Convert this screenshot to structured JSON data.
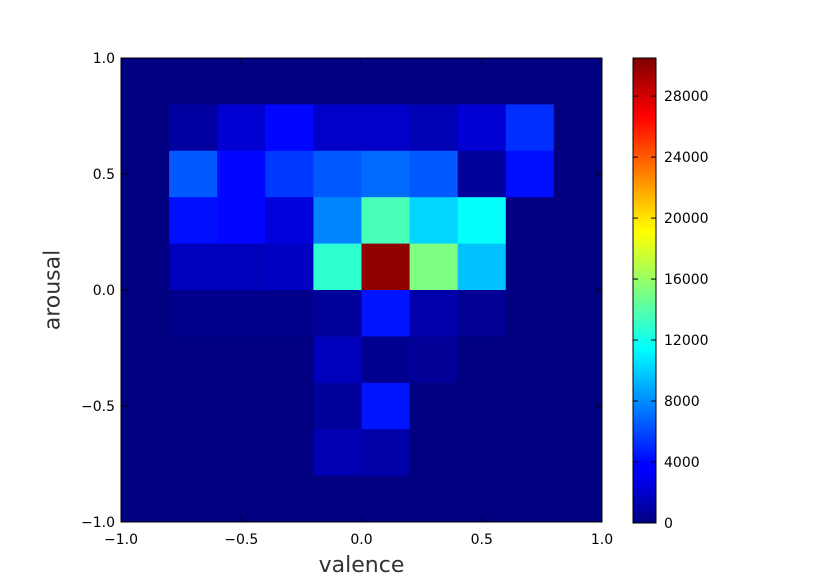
{
  "chart_data": {
    "type": "heatmap",
    "xlabel": "valence",
    "ylabel": "arousal",
    "xlim": [
      -1.0,
      1.0
    ],
    "ylim": [
      -1.0,
      1.0
    ],
    "x_ticks": [
      "−1.0",
      "−0.5",
      "0.0",
      "0.5",
      "1.0"
    ],
    "x_tick_values": [
      -1.0,
      -0.5,
      0.0,
      0.5,
      1.0
    ],
    "y_ticks": [
      "−1.0",
      "−0.5",
      "0.0",
      "0.5",
      "1.0"
    ],
    "y_tick_values": [
      -1.0,
      -0.5,
      0.0,
      0.5,
      1.0
    ],
    "x_bin_edges": [
      -1.0,
      -0.8,
      -0.6,
      -0.4,
      -0.2,
      0.0,
      0.2,
      0.4,
      0.6,
      0.8,
      1.0
    ],
    "y_bin_edges_top_to_bottom": [
      1.0,
      0.8,
      0.6,
      0.4,
      0.2,
      0.0,
      -0.2,
      -0.4,
      -0.6,
      -0.8,
      -1.0
    ],
    "values_rows_top_to_bottom": [
      [
        0,
        0,
        0,
        0,
        0,
        0,
        0,
        0,
        0,
        0
      ],
      [
        0,
        1000,
        2500,
        4000,
        2200,
        2200,
        1600,
        2500,
        5200,
        0
      ],
      [
        0,
        6500,
        4000,
        5500,
        6500,
        7000,
        6500,
        800,
        4200,
        0
      ],
      [
        0,
        4200,
        4000,
        2800,
        7800,
        13600,
        10200,
        11600,
        0,
        0
      ],
      [
        0,
        1800,
        1800,
        2000,
        12800,
        30000,
        15200,
        9600,
        0,
        0
      ],
      [
        0,
        300,
        300,
        300,
        800,
        4400,
        1300,
        600,
        0,
        0
      ],
      [
        0,
        0,
        0,
        0,
        1800,
        500,
        700,
        0,
        0,
        0
      ],
      [
        0,
        0,
        0,
        0,
        800,
        4400,
        0,
        0,
        0,
        0
      ],
      [
        0,
        0,
        0,
        0,
        1500,
        1200,
        0,
        0,
        0,
        0
      ],
      [
        0,
        0,
        0,
        0,
        0,
        0,
        0,
        0,
        0,
        0
      ]
    ],
    "colormap": "jet",
    "colorbar": {
      "min": 0,
      "max": 30500,
      "ticks": [
        0,
        4000,
        8000,
        12000,
        16000,
        20000,
        24000,
        28000
      ],
      "tick_labels": [
        "0",
        "4000",
        "8000",
        "12000",
        "16000",
        "20000",
        "24000",
        "28000"
      ]
    }
  }
}
